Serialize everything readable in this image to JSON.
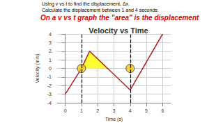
{
  "header": {
    "line1": "Using v vs t to find the displacement, Δx.",
    "line2": "Calculate the displacement between 1 and 4 seconds.",
    "note": "On a v vs t graph the \"area\" is the displacement"
  },
  "chart_data": {
    "type": "line",
    "title": "Velocity vs Time",
    "x_label": "Time (s)",
    "y_label": "Velocity (m/s)",
    "x": [
      0,
      1,
      1.5,
      4,
      6
    ],
    "values": [
      -3,
      0,
      2,
      -2.5,
      4
    ],
    "color": "#b22222",
    "xlim": [
      -0.5,
      6.5
    ],
    "xticks": [
      0,
      1,
      2,
      3,
      4,
      5,
      6
    ],
    "ylim": [
      -4,
      4
    ],
    "yticks": [
      -4,
      -3,
      -2,
      -1,
      0,
      1,
      2,
      3,
      4
    ],
    "grid": true,
    "highlighted_area": {
      "x": [
        1,
        1.5,
        2.6
      ],
      "values": [
        0,
        2,
        0
      ],
      "color": "#ffff33"
    },
    "circled_points": {
      "x": [
        1,
        4
      ],
      "values": [
        0,
        0
      ],
      "color": "#f5c518"
    },
    "dashed_lines": [
      1,
      4
    ]
  }
}
